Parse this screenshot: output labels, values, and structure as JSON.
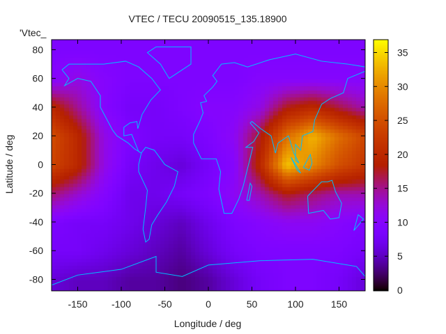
{
  "chart_data": {
    "type": "heatmap",
    "title": "VTEC / TECU 20090515_135.18900",
    "xlabel": "Longitude / deg",
    "ylabel": "Latitude / deg",
    "key_label": "'Vtec_",
    "xlim": [
      -180,
      180
    ],
    "ylim": [
      -88,
      87
    ],
    "zlim": [
      0,
      37
    ],
    "xticks": [
      -150,
      -100,
      -50,
      0,
      50,
      100,
      150
    ],
    "yticks": [
      -80,
      -60,
      -40,
      -20,
      0,
      20,
      40,
      60,
      80
    ],
    "cbticks": [
      0,
      5,
      10,
      15,
      20,
      25,
      30,
      35
    ],
    "palette": "black-purple-red-yellow",
    "coastline_color": "#00c0ff",
    "grid_lon": [
      -180,
      -150,
      -120,
      -90,
      -60,
      -30,
      0,
      30,
      60,
      90,
      120,
      150,
      180
    ],
    "grid_lat": [
      80,
      60,
      40,
      20,
      0,
      -20,
      -40,
      -60,
      -80
    ],
    "values": [
      [
        9,
        9,
        9,
        9,
        9,
        9,
        9,
        9,
        9,
        9,
        9,
        9,
        9
      ],
      [
        10,
        12,
        10,
        9,
        9,
        9,
        9,
        9,
        10,
        10,
        10,
        10,
        10
      ],
      [
        20,
        15,
        10,
        8,
        8,
        9,
        10,
        10,
        12,
        18,
        20,
        17,
        14
      ],
      [
        25,
        20,
        12,
        9,
        8,
        8,
        9,
        11,
        18,
        28,
        33,
        28,
        24
      ],
      [
        24,
        20,
        12,
        8,
        7,
        6,
        8,
        10,
        20,
        34,
        30,
        25,
        22
      ],
      [
        16,
        13,
        10,
        7,
        7,
        8,
        9,
        11,
        14,
        18,
        16,
        14,
        14
      ],
      [
        9,
        8,
        8,
        7,
        6,
        5,
        7,
        9,
        10,
        11,
        11,
        10,
        9
      ],
      [
        8,
        8,
        7,
        6,
        5,
        4,
        6,
        8,
        9,
        9,
        9,
        9,
        8
      ],
      [
        6,
        5,
        5,
        4,
        4,
        3,
        4,
        6,
        8,
        9,
        9,
        8,
        6
      ]
    ]
  }
}
